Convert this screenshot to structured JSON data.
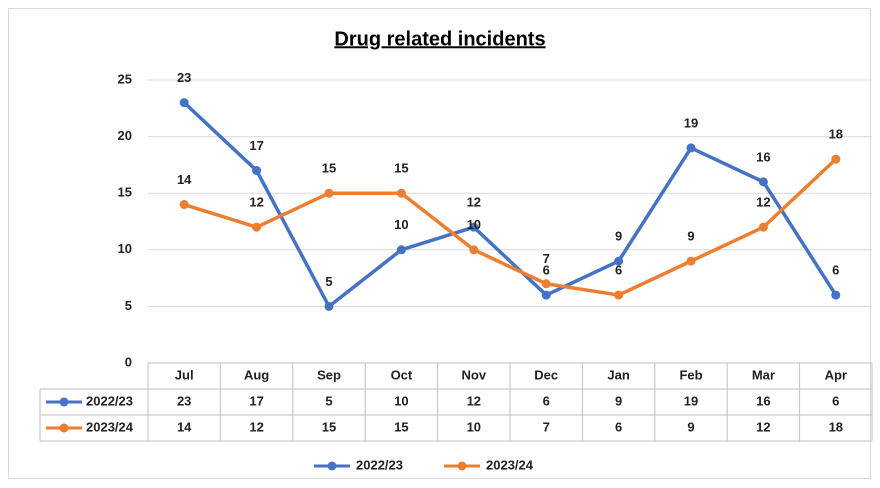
{
  "chart_data": {
    "type": "line",
    "title": "Drug related incidents",
    "categories": [
      "Jul",
      "Aug",
      "Sep",
      "Oct",
      "Nov",
      "Dec",
      "Jan",
      "Feb",
      "Mar",
      "Apr"
    ],
    "series": [
      {
        "name": "2022/23",
        "color": "#4472c4",
        "values": [
          23,
          17,
          5,
          10,
          12,
          6,
          9,
          19,
          16,
          6
        ]
      },
      {
        "name": "2023/24",
        "color": "#ed7d31",
        "values": [
          14,
          12,
          15,
          15,
          10,
          7,
          6,
          9,
          12,
          18
        ]
      }
    ],
    "ylim": [
      0,
      25
    ],
    "yticks": [
      0,
      5,
      10,
      15,
      20,
      25
    ],
    "grid": true,
    "legend": "bottom",
    "data_table": true
  }
}
